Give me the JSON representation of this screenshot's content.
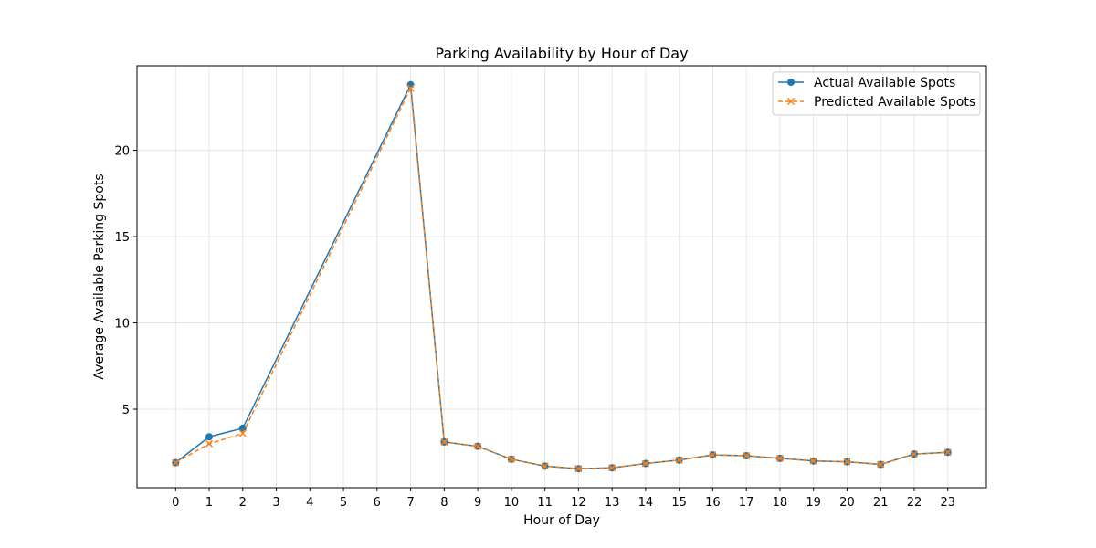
{
  "chart_data": {
    "type": "line",
    "title": "Parking Availability by Hour of Day",
    "xlabel": "Hour of Day",
    "ylabel": "Average Available Parking Spots",
    "x": [
      0,
      1,
      2,
      7,
      8,
      9,
      10,
      11,
      12,
      13,
      14,
      15,
      16,
      17,
      18,
      19,
      20,
      21,
      22,
      23
    ],
    "xticks": [
      0,
      1,
      2,
      3,
      4,
      5,
      6,
      7,
      8,
      9,
      10,
      11,
      12,
      13,
      14,
      15,
      16,
      17,
      18,
      19,
      20,
      21,
      22,
      23
    ],
    "yticks": [
      5,
      10,
      15,
      20
    ],
    "xlim": [
      -1.15,
      24.15
    ],
    "ylim": [
      0.45,
      24.9
    ],
    "grid": true,
    "legend_position": "top-right",
    "series": [
      {
        "name": "Actual Available Spots",
        "color": "#1f77b4",
        "marker": "circle",
        "linestyle": "solid",
        "values": [
          1.9,
          3.4,
          3.9,
          23.8,
          3.1,
          2.85,
          2.1,
          1.7,
          1.55,
          1.6,
          1.85,
          2.05,
          2.35,
          2.3,
          2.15,
          2.0,
          1.95,
          1.8,
          2.4,
          2.5
        ]
      },
      {
        "name": "Predicted Available Spots",
        "color": "#ff7f0e",
        "marker": "x",
        "linestyle": "dashed",
        "values": [
          1.9,
          3.0,
          3.6,
          23.6,
          3.1,
          2.85,
          2.1,
          1.7,
          1.55,
          1.6,
          1.85,
          2.05,
          2.35,
          2.3,
          2.15,
          2.0,
          1.95,
          1.8,
          2.4,
          2.5
        ]
      }
    ]
  }
}
